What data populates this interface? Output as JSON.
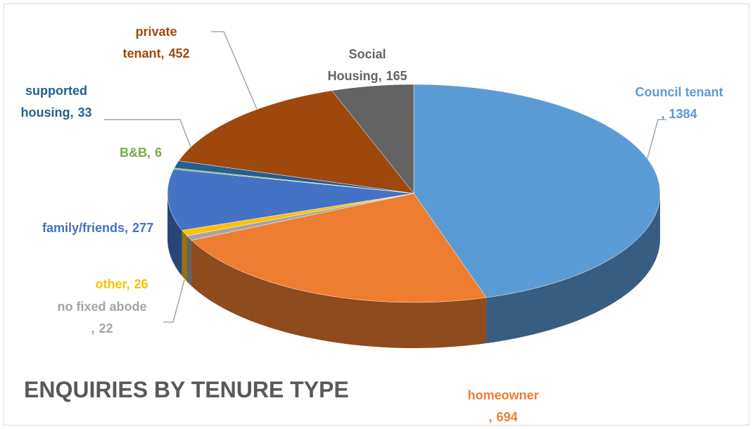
{
  "chart_data": {
    "type": "pie",
    "title": "ENQUIRIES BY TENURE TYPE",
    "categories": [
      "Council tenant ,",
      "homeowner ,",
      "no fixed abode ,",
      "other,",
      "family/friends,",
      "B&B,",
      "supported housing,",
      "private tenant,",
      "Social Housing,"
    ],
    "values": [
      1384,
      694,
      22,
      26,
      277,
      6,
      33,
      452,
      165
    ],
    "colors": [
      "#5b9bd5",
      "#ed7d31",
      "#a5a5a5",
      "#ffc000",
      "#4472c4",
      "#70ad47",
      "#255e91",
      "#9e480e",
      "#636363"
    ]
  }
}
